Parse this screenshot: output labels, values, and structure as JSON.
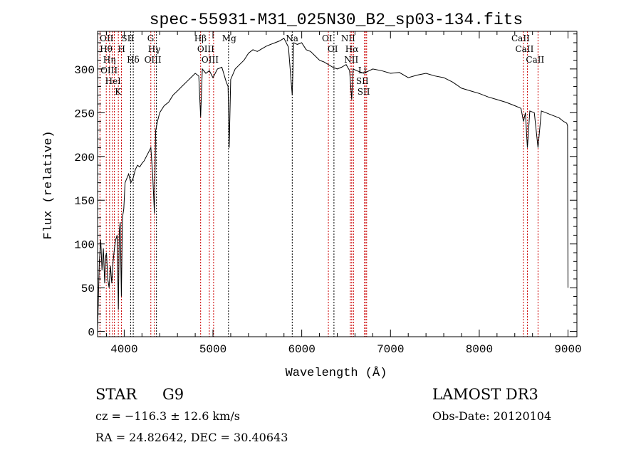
{
  "chart_data": {
    "type": "line",
    "title": "spec-55931-M31_025N30_B2_sp03-134.fits",
    "xlabel": "Wavelength (Å)",
    "ylabel": "Flux (relative)",
    "xlim": [
      3700,
      9100
    ],
    "ylim": [
      -6,
      343
    ],
    "xticks": [
      4000,
      5000,
      6000,
      7000,
      8000,
      9000
    ],
    "yticks": [
      0,
      50,
      100,
      150,
      200,
      250,
      300
    ],
    "grid": false,
    "series": [
      {
        "name": "spectrum",
        "x": [
          3700,
          3710,
          3720,
          3735,
          3750,
          3765,
          3780,
          3790,
          3800,
          3815,
          3830,
          3845,
          3860,
          3875,
          3890,
          3905,
          3920,
          3934,
          3945,
          3955,
          3968,
          3980,
          3995,
          4010,
          4030,
          4050,
          4075,
          4100,
          4125,
          4150,
          4175,
          4200,
          4225,
          4250,
          4275,
          4300,
          4320,
          4340,
          4355,
          4375,
          4400,
          4450,
          4500,
          4550,
          4600,
          4650,
          4700,
          4750,
          4800,
          4840,
          4861,
          4880,
          4920,
          4960,
          5000,
          5050,
          5100,
          5150,
          5170,
          5183,
          5200,
          5250,
          5300,
          5350,
          5400,
          5450,
          5500,
          5550,
          5600,
          5650,
          5700,
          5750,
          5800,
          5850,
          5893,
          5910,
          5950,
          6000,
          6050,
          6100,
          6150,
          6200,
          6250,
          6300,
          6350,
          6400,
          6450,
          6500,
          6540,
          6563,
          6580,
          6620,
          6700,
          6800,
          6900,
          7000,
          7100,
          7200,
          7300,
          7400,
          7500,
          7600,
          7700,
          7800,
          7900,
          8000,
          8100,
          8200,
          8300,
          8400,
          8470,
          8498,
          8520,
          8542,
          8570,
          8620,
          8662,
          8700,
          8750,
          8800,
          8850,
          8900,
          8950,
          8985,
          8995,
          9000
        ],
        "y": [
          0,
          40,
          80,
          105,
          70,
          95,
          55,
          85,
          90,
          60,
          50,
          75,
          55,
          80,
          95,
          105,
          110,
          25,
          115,
          125,
          40,
          130,
          140,
          170,
          175,
          180,
          170,
          175,
          185,
          190,
          188,
          192,
          195,
          200,
          205,
          210,
          180,
          135,
          230,
          240,
          250,
          258,
          262,
          270,
          275,
          280,
          285,
          290,
          295,
          292,
          245,
          300,
          295,
          298,
          290,
          300,
          302,
          285,
          280,
          210,
          288,
          300,
          305,
          310,
          318,
          322,
          320,
          323,
          326,
          328,
          330,
          332,
          335,
          325,
          270,
          330,
          328,
          330,
          322,
          320,
          315,
          310,
          308,
          305,
          302,
          300,
          302,
          305,
          298,
          265,
          300,
          298,
          295,
          300,
          298,
          295,
          296,
          290,
          293,
          295,
          292,
          290,
          285,
          278,
          275,
          272,
          268,
          265,
          262,
          258,
          255,
          240,
          250,
          210,
          252,
          250,
          210,
          252,
          250,
          248,
          246,
          244,
          240,
          238,
          235,
          50
        ]
      }
    ],
    "line_markers": [
      {
        "label": "OII",
        "wavelength": 3727,
        "color": "#cc0000",
        "row": 2
      },
      {
        "label": "Hθ",
        "wavelength": 3798,
        "color": "#cc0000",
        "row": 1
      },
      {
        "label": "Hη",
        "wavelength": 3835,
        "color": "#cc0000",
        "row": 3
      },
      {
        "label": "OIII",
        "wavelength": 3869,
        "color": "#cc0000",
        "row": 3
      },
      {
        "label": "HeI",
        "wavelength": 3889,
        "color": "#cc0000",
        "row": 2
      },
      {
        "label": "K",
        "wavelength": 3934,
        "color": "#cc0000",
        "row": 1
      },
      {
        "label": "H",
        "wavelength": 3969,
        "color": "#cc0000",
        "row": 3
      },
      {
        "label": "SII",
        "wavelength": 4072,
        "color": "#000000",
        "row": 2
      },
      {
        "label": "Hδ",
        "wavelength": 4102,
        "color": "#000000",
        "row": 1
      },
      {
        "label": "G",
        "wavelength": 4300,
        "color": "#cc0000",
        "row": 3
      },
      {
        "label": "Hγ",
        "wavelength": 4340,
        "color": "#cc0000",
        "row": 2
      },
      {
        "label": "OIII",
        "wavelength": 4363,
        "color": "#000000",
        "row": 1
      },
      {
        "label": "Hβ",
        "wavelength": 4861,
        "color": "#cc0000",
        "row": 3
      },
      {
        "label": "OIII",
        "wavelength": 4959,
        "color": "#cc0000",
        "row": 2
      },
      {
        "label": "OIII",
        "wavelength": 5007,
        "color": "#cc0000",
        "row": 1
      },
      {
        "label": "Mg",
        "wavelength": 5175,
        "color": "#000000",
        "row": 3
      },
      {
        "label": "Na",
        "wavelength": 5893,
        "color": "#000000",
        "row": 2
      },
      {
        "label": "OI",
        "wavelength": 6300,
        "color": "#cc0000",
        "row": 1
      },
      {
        "label": "OI",
        "wavelength": 6363,
        "color": "#000000",
        "row": 3
      },
      {
        "label": "NII",
        "wavelength": 6548,
        "color": "#cc0000",
        "row": 2
      },
      {
        "label": "Hα",
        "wavelength": 6563,
        "color": "#cc0000",
        "row": 1
      },
      {
        "label": "NII",
        "wavelength": 6583,
        "color": "#cc0000",
        "row": 3
      },
      {
        "label": "Li",
        "wavelength": 6708,
        "color": "#cc0000",
        "row": 2
      },
      {
        "label": "SII",
        "wavelength": 6716,
        "color": "#cc0000",
        "row": 1
      },
      {
        "label": "SII",
        "wavelength": 6731,
        "color": "#cc0000",
        "row": 3
      },
      {
        "label": "CaII",
        "wavelength": 8498,
        "color": "#cc0000",
        "row": 2
      },
      {
        "label": "CaII",
        "wavelength": 8542,
        "color": "#cc0000",
        "row": 1
      },
      {
        "label": "CaII",
        "wavelength": 8662,
        "color": "#cc0000",
        "row": 3
      }
    ]
  },
  "info": {
    "class": "STAR",
    "subclass": "G9",
    "survey": "LAMOST DR3",
    "cz": "cz = −116.3 ± 12.6 km/s",
    "obs_date": "Obs-Date: 20120104",
    "coords": "RA =  24.82642, DEC =  30.40643"
  }
}
